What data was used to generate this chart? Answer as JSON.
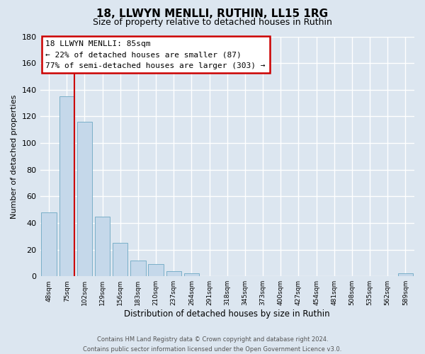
{
  "title": "18, LLWYN MENLLI, RUTHIN, LL15 1RG",
  "subtitle": "Size of property relative to detached houses in Ruthin",
  "xlabel": "Distribution of detached houses by size in Ruthin",
  "ylabel": "Number of detached properties",
  "bar_labels": [
    "48sqm",
    "75sqm",
    "102sqm",
    "129sqm",
    "156sqm",
    "183sqm",
    "210sqm",
    "237sqm",
    "264sqm",
    "291sqm",
    "318sqm",
    "345sqm",
    "373sqm",
    "400sqm",
    "427sqm",
    "454sqm",
    "481sqm",
    "508sqm",
    "535sqm",
    "562sqm",
    "589sqm"
  ],
  "bar_values": [
    48,
    135,
    116,
    45,
    25,
    12,
    9,
    4,
    2,
    0,
    0,
    0,
    0,
    0,
    0,
    0,
    0,
    0,
    0,
    0,
    2
  ],
  "bar_color": "#c5d8ea",
  "bar_edge_color": "#7aafc8",
  "ylim": [
    0,
    180
  ],
  "yticks": [
    0,
    20,
    40,
    60,
    80,
    100,
    120,
    140,
    160,
    180
  ],
  "property_line_color": "#cc0000",
  "annotation_title": "18 LLWYN MENLLI: 85sqm",
  "annotation_line1": "← 22% of detached houses are smaller (87)",
  "annotation_line2": "77% of semi-detached houses are larger (303) →",
  "annotation_box_color": "#ffffff",
  "annotation_box_edge": "#cc0000",
  "footer_line1": "Contains HM Land Registry data © Crown copyright and database right 2024.",
  "footer_line2": "Contains public sector information licensed under the Open Government Licence v3.0.",
  "bg_color": "#dce6f0",
  "plot_bg_color": "#dce6f0",
  "grid_color": "#ffffff"
}
